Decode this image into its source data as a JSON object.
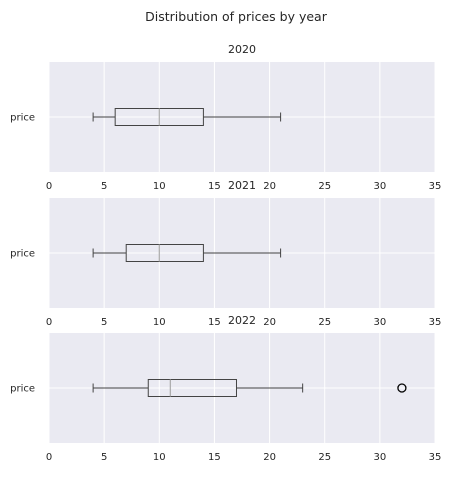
{
  "chart_data": {
    "type": "box",
    "title": "Distribution of prices by year",
    "colors": {
      "background": "#eaeaf2",
      "grid": "#ffffff",
      "box_edge": "#444444",
      "median": "#a9a9a9",
      "text": "#262626"
    },
    "xlim": [
      0,
      35
    ],
    "xticks": [
      0,
      5,
      10,
      15,
      20,
      25,
      30,
      35
    ],
    "panels": [
      {
        "title": "2020",
        "category": "price",
        "whisker_low": 4,
        "q1": 6,
        "median": 10,
        "q3": 14,
        "whisker_high": 21,
        "outliers": []
      },
      {
        "title": "2021",
        "category": "price",
        "whisker_low": 4,
        "q1": 7,
        "median": 10,
        "q3": 14,
        "whisker_high": 21,
        "outliers": []
      },
      {
        "title": "2022",
        "category": "price",
        "whisker_low": 4,
        "q1": 9,
        "median": 11,
        "q3": 17,
        "whisker_high": 23,
        "outliers": [
          32
        ]
      }
    ]
  }
}
